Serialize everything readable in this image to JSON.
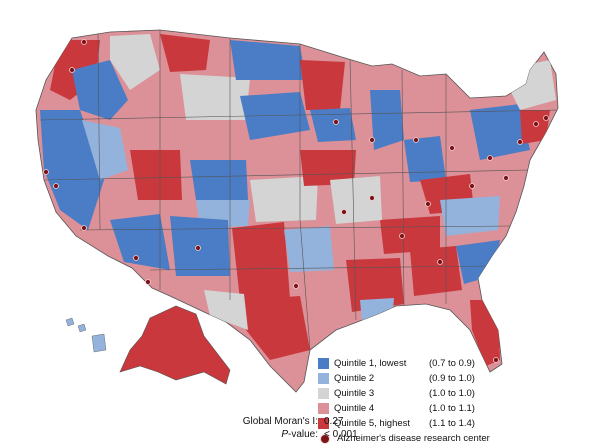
{
  "legend": {
    "items": [
      {
        "label": "Quintile 1, lowest",
        "range": "(0.7 to 0.9)",
        "color": "#4a7dc5"
      },
      {
        "label": "Quintile 2",
        "range": "(0.9 to 1.0)",
        "color": "#94b3dc"
      },
      {
        "label": "Quintile 3",
        "range": "(1.0 to 1.0)",
        "color": "#d4d4d4"
      },
      {
        "label": "Quintile 4",
        "range": "(1.0 to 1.1)",
        "color": "#dc9097"
      },
      {
        "label": "Quintile 5, highest",
        "range": "(1.1 to 1.4)",
        "color": "#c9383d"
      }
    ],
    "marker_label": "Alzheimer's disease research center",
    "marker_color": "#7a1418"
  },
  "stats": {
    "moran_label": "Global Moran's I:",
    "moran_value": "0.27",
    "p_label_italic": "P",
    "p_label_rest": "-value:",
    "p_value": "< 0.001"
  }
}
